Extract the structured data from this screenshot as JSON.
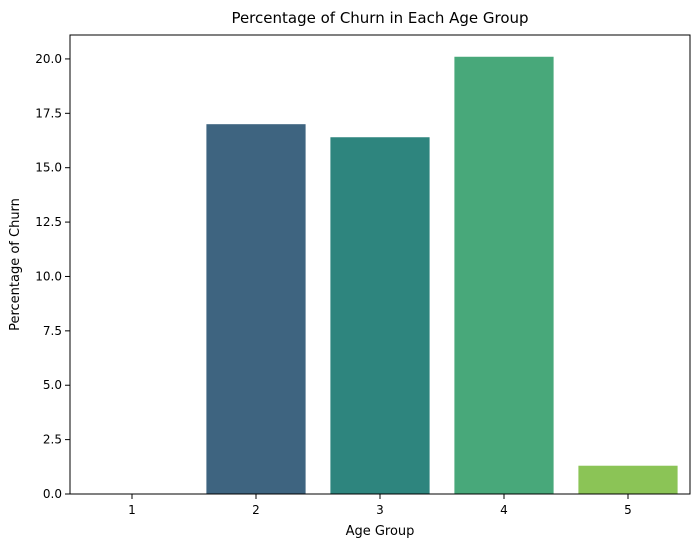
{
  "chart_data": {
    "type": "bar",
    "title": "Percentage of Churn in Each Age Group",
    "xlabel": "Age Group",
    "ylabel": "Percentage of Churn",
    "categories": [
      "1",
      "2",
      "3",
      "4",
      "5"
    ],
    "values": [
      0.0,
      17.0,
      16.4,
      20.1,
      1.3
    ],
    "colors": [
      "#482878",
      "#3e6480",
      "#2e857e",
      "#48a87a",
      "#8bc456"
    ],
    "ylim": [
      0,
      21.1
    ],
    "yticks": [
      0.0,
      2.5,
      5.0,
      7.5,
      10.0,
      12.5,
      15.0,
      17.5,
      20.0
    ],
    "ytick_labels": [
      "0.0",
      "2.5",
      "5.0",
      "7.5",
      "10.0",
      "12.5",
      "15.0",
      "17.5",
      "20.0"
    ],
    "grid": false,
    "legend": "none"
  }
}
